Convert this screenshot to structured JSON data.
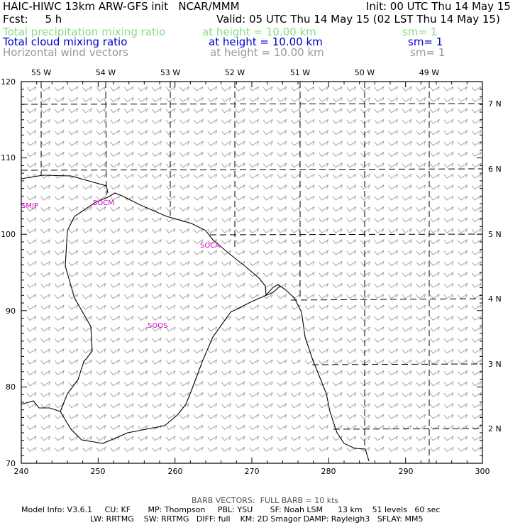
{
  "header": {
    "title": "HAIC-HIWC 13km ARW-GFS init   NCAR/MMM",
    "init": "Init: 00 UTC Thu 14 May 15",
    "fcst": "Fcst:     5 h",
    "valid": "Valid: 05 UTC Thu 14 May 15 (02 LST Thu 14 May 15)"
  },
  "fields": [
    {
      "name": "Total precipitation mixing ratio",
      "height": "at height = 10.00 km",
      "sm": "sm= 1",
      "color": "#88dd88"
    },
    {
      "name": "Total cloud mixing ratio",
      "height": "at height = 10.00 km",
      "sm": "sm= 1",
      "color": "#0000cc"
    },
    {
      "name": "Horizontal wind vectors",
      "height": "at height = 10.00 km",
      "sm": "sm= 1",
      "color": "#999999"
    }
  ],
  "axes": {
    "x_ticks": [
      "240",
      "250",
      "260",
      "270",
      "280",
      "290",
      "300"
    ],
    "y_ticks": [
      "70",
      "80",
      "90",
      "100",
      "110",
      "120"
    ],
    "lon_labels": [
      "55 W",
      "54 W",
      "53 W",
      "52 W",
      "51 W",
      "50 W",
      "49 W"
    ],
    "lat_labels": [
      "7 N",
      "6 N",
      "5 N",
      "4 N",
      "3 N",
      "2 N"
    ]
  },
  "stations": [
    "SMJP",
    "SOCM",
    "SOCA",
    "SOOS"
  ],
  "footer": {
    "barb": "BARB VECTORS:  FULL BARB = 10 kts",
    "line1": "Model Info: V3.6.1     CU: KF       MP: Thompson     PBL: YSU       SF: Noah LSM      13 km    51 levels   60 sec",
    "line2": "LW: RRTMG    SW: RRTMG   DIFF: full    KM: 2D Smagor DAMP: Rayleigh3   SFLAY: MM5"
  },
  "colors": {
    "barb": "#999999",
    "coast": "#000000",
    "grid": "#000000",
    "station": "#cc00cc"
  }
}
